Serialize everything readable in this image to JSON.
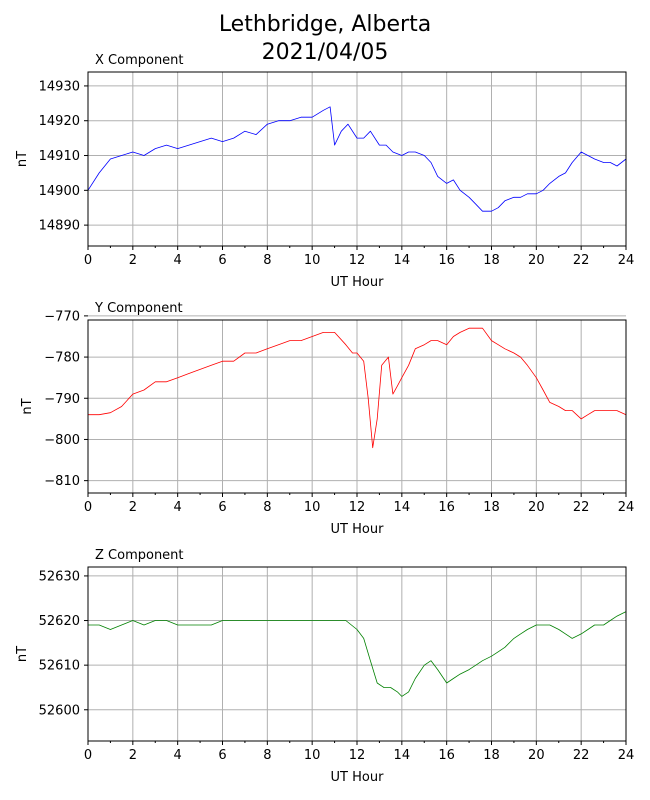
{
  "figure": {
    "title_line1": "Lethbridge, Alberta",
    "title_line2": "2021/04/05"
  },
  "chart_data": [
    {
      "type": "line",
      "title": "X Component",
      "xlabel": "UT Hour",
      "ylabel": "nT",
      "xlim": [
        0,
        24
      ],
      "ylim": [
        14884,
        14934
      ],
      "xticks": [
        0,
        2,
        4,
        6,
        8,
        10,
        12,
        14,
        16,
        18,
        20,
        22,
        24
      ],
      "yticks": [
        14890,
        14900,
        14910,
        14920,
        14930
      ],
      "grid": true,
      "color": "#0000ff",
      "x": [
        0,
        0.5,
        1,
        1.5,
        2,
        2.5,
        3,
        3.5,
        4,
        4.5,
        5,
        5.5,
        6,
        6.5,
        7,
        7.5,
        8,
        8.5,
        9,
        9.5,
        10,
        10.5,
        10.8,
        11,
        11.3,
        11.6,
        12,
        12.3,
        12.6,
        13,
        13.3,
        13.6,
        14,
        14.3,
        14.6,
        15,
        15.3,
        15.6,
        16,
        16.3,
        16.6,
        17,
        17.3,
        17.6,
        18,
        18.3,
        18.6,
        19,
        19.3,
        19.6,
        20,
        20.3,
        20.6,
        21,
        21.3,
        21.6,
        22,
        22.3,
        22.6,
        23,
        23.3,
        23.6,
        24
      ],
      "y": [
        14900,
        14905,
        14909,
        14910,
        14911,
        14910,
        14912,
        14913,
        14912,
        14913,
        14914,
        14915,
        14914,
        14915,
        14917,
        14916,
        14919,
        14920,
        14920,
        14921,
        14921,
        14923,
        14924,
        14913,
        14917,
        14919,
        14915,
        14915,
        14917,
        14913,
        14913,
        14911,
        14910,
        14911,
        14911,
        14910,
        14908,
        14904,
        14902,
        14903,
        14900,
        14898,
        14896,
        14894,
        14894,
        14895,
        14897,
        14898,
        14898,
        14899,
        14899,
        14900,
        14902,
        14904,
        14905,
        14908,
        14911,
        14910,
        14909,
        14908,
        14908,
        14907,
        14909
      ]
    },
    {
      "type": "line",
      "title": "Y Component",
      "xlabel": "UT Hour",
      "ylabel": "nT",
      "xlim": [
        0,
        24
      ],
      "ylim": [
        -813,
        -771
      ],
      "xticks": [
        0,
        2,
        4,
        6,
        8,
        10,
        12,
        14,
        16,
        18,
        20,
        22,
        24
      ],
      "yticks": [
        -770,
        -780,
        -790,
        -800,
        -810
      ],
      "grid": true,
      "color": "#ff0000",
      "x": [
        0,
        0.5,
        1,
        1.5,
        2,
        2.5,
        3,
        3.5,
        4,
        4.5,
        5,
        5.5,
        6,
        6.5,
        7,
        7.5,
        8,
        8.5,
        9,
        9.5,
        10,
        10.5,
        11,
        11.5,
        11.8,
        12,
        12.3,
        12.5,
        12.7,
        12.9,
        13.1,
        13.4,
        13.6,
        13.8,
        14,
        14.3,
        14.6,
        15,
        15.3,
        15.6,
        16,
        16.3,
        16.6,
        17,
        17.3,
        17.6,
        18,
        18.3,
        18.6,
        19,
        19.3,
        19.6,
        20,
        20.3,
        20.6,
        21,
        21.3,
        21.6,
        22,
        22.3,
        22.6,
        23,
        23.3,
        23.6,
        24
      ],
      "y": [
        -794,
        -794,
        -793.5,
        -792,
        -789,
        -788,
        -786,
        -786,
        -785,
        -784,
        -783,
        -782,
        -781,
        -781,
        -779,
        -779,
        -778,
        -777,
        -776,
        -776,
        -775,
        -774,
        -774,
        -777,
        -779,
        -779,
        -781,
        -790,
        -802,
        -795,
        -782,
        -780,
        -789,
        -787,
        -785,
        -782,
        -778,
        -777,
        -776,
        -776,
        -777,
        -775,
        -774,
        -773,
        -773,
        -773,
        -776,
        -777,
        -778,
        -779,
        -780,
        -782,
        -785,
        -788,
        -791,
        -792,
        -793,
        -793,
        -795,
        -794,
        -793,
        -793,
        -793,
        -793,
        -794
      ]
    },
    {
      "type": "line",
      "title": "Z Component",
      "xlabel": "UT Hour",
      "ylabel": "nT",
      "xlim": [
        0,
        24
      ],
      "ylim": [
        52593,
        52632
      ],
      "xticks": [
        0,
        2,
        4,
        6,
        8,
        10,
        12,
        14,
        16,
        18,
        20,
        22,
        24
      ],
      "yticks": [
        52600,
        52610,
        52620,
        52630
      ],
      "grid": true,
      "color": "#008000",
      "x": [
        0,
        0.5,
        1,
        1.5,
        2,
        2.5,
        3,
        3.5,
        4,
        4.5,
        5,
        5.5,
        6,
        6.5,
        7,
        7.5,
        8,
        8.5,
        9,
        9.5,
        10,
        10.5,
        11,
        11.5,
        12,
        12.3,
        12.6,
        12.9,
        13.2,
        13.5,
        13.8,
        14,
        14.3,
        14.6,
        15,
        15.3,
        15.6,
        16,
        16.3,
        16.6,
        17,
        17.3,
        17.6,
        18,
        18.3,
        18.6,
        19,
        19.3,
        19.6,
        20,
        20.3,
        20.6,
        21,
        21.3,
        21.6,
        22,
        22.3,
        22.6,
        23,
        23.3,
        23.6,
        24
      ],
      "y": [
        52619,
        52619,
        52618,
        52619,
        52620,
        52619,
        52620,
        52620,
        52619,
        52619,
        52619,
        52619,
        52620,
        52620,
        52620,
        52620,
        52620,
        52620,
        52620,
        52620,
        52620,
        52620,
        52620,
        52620,
        52618,
        52616,
        52611,
        52606,
        52605,
        52605,
        52604,
        52603,
        52604,
        52607,
        52610,
        52611,
        52609,
        52606,
        52607,
        52608,
        52609,
        52610,
        52611,
        52612,
        52613,
        52614,
        52616,
        52617,
        52618,
        52619,
        52619,
        52619,
        52618,
        52617,
        52616,
        52617,
        52618,
        52619,
        52619,
        52620,
        52621,
        52622
      ]
    }
  ]
}
